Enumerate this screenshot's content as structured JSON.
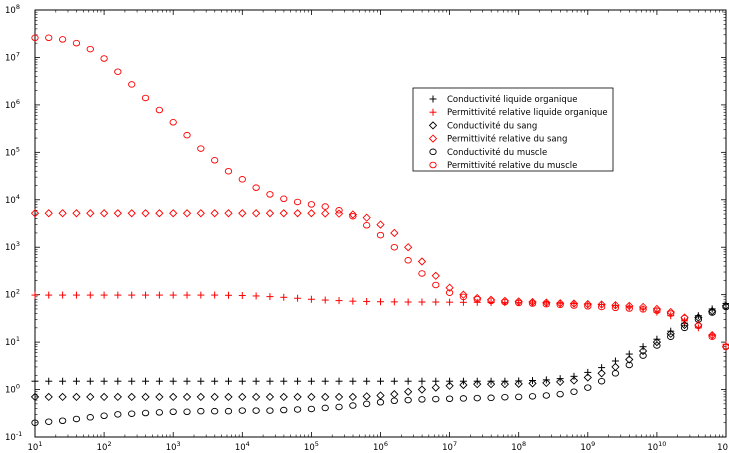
{
  "chart_data": {
    "type": "scatter",
    "title": "",
    "xlabel": "",
    "ylabel": "",
    "x_scale": "log",
    "y_scale": "log",
    "xlim": [
      10,
      100000000000.0
    ],
    "ylim": [
      0.1,
      100000000.0
    ],
    "grid": false,
    "legend_position": "right-center",
    "x_ticks": [
      {
        "base": "10",
        "exp": "1",
        "value": 10
      },
      {
        "base": "10",
        "exp": "2",
        "value": 100
      },
      {
        "base": "10",
        "exp": "3",
        "value": 1000
      },
      {
        "base": "10",
        "exp": "4",
        "value": 10000.0
      },
      {
        "base": "10",
        "exp": "5",
        "value": 100000.0
      },
      {
        "base": "10",
        "exp": "6",
        "value": 1000000.0
      },
      {
        "base": "10",
        "exp": "7",
        "value": 10000000.0
      },
      {
        "base": "10",
        "exp": "8",
        "value": 100000000.0
      },
      {
        "base": "10",
        "exp": "9",
        "value": 1000000000.0
      },
      {
        "base": "10",
        "exp": "10",
        "value": 10000000000.0
      },
      {
        "base": "10",
        "exp": "",
        "value": 100000000000.0
      }
    ],
    "y_ticks": [
      {
        "base": "10",
        "exp": "-1",
        "value": 0.1
      },
      {
        "base": "10",
        "exp": "0",
        "value": 1
      },
      {
        "base": "10",
        "exp": "1",
        "value": 10
      },
      {
        "base": "10",
        "exp": "2",
        "value": 100
      },
      {
        "base": "10",
        "exp": "3",
        "value": 1000
      },
      {
        "base": "10",
        "exp": "4",
        "value": 10000.0
      },
      {
        "base": "10",
        "exp": "5",
        "value": 100000.0
      },
      {
        "base": "10",
        "exp": "6",
        "value": 1000000.0
      },
      {
        "base": "10",
        "exp": "7",
        "value": 10000000.0
      },
      {
        "base": "10",
        "exp": "8",
        "value": 100000000.0
      }
    ],
    "x": [
      10,
      15.8,
      25.1,
      39.8,
      63.1,
      100,
      158,
      251,
      398,
      631,
      1000,
      1585,
      2512,
      3981,
      6310,
      10000,
      15849,
      25119,
      39811,
      63096,
      100000,
      158489,
      251189,
      398107,
      630957,
      1000000,
      1584893,
      2511886,
      3981072,
      6309573,
      10000000,
      15848932,
      25118864,
      39810717,
      63095734,
      100000000,
      158489319,
      251188643,
      398107171,
      630957344,
      1000000000,
      1584893192,
      2511886432,
      3981071706,
      6309573445,
      10000000000,
      15848931925,
      25118864315,
      39810717055,
      63095734448,
      100000000000
    ],
    "series": [
      {
        "name": "Conductivité liquide organique",
        "marker": "plus",
        "color": "#000000",
        "values": [
          1.5,
          1.5,
          1.5,
          1.5,
          1.5,
          1.5,
          1.5,
          1.5,
          1.5,
          1.5,
          1.5,
          1.5,
          1.5,
          1.5,
          1.5,
          1.5,
          1.5,
          1.5,
          1.5,
          1.5,
          1.5,
          1.5,
          1.5,
          1.5,
          1.5,
          1.5,
          1.5,
          1.5,
          1.5,
          1.5,
          1.5,
          1.5,
          1.5,
          1.5,
          1.5,
          1.52,
          1.55,
          1.6,
          1.7,
          1.9,
          2.3,
          2.9,
          4,
          5.6,
          8,
          11.5,
          17,
          25,
          36,
          50,
          65
        ]
      },
      {
        "name": "Permittivité relative liquide organique",
        "marker": "plus",
        "color": "#ff0000",
        "values": [
          98,
          98,
          98,
          98,
          98,
          98,
          98,
          98,
          98,
          98,
          98,
          98,
          98,
          98,
          97,
          96,
          94,
          91,
          88,
          84,
          80,
          77,
          75,
          73,
          72,
          71,
          70.5,
          70,
          70,
          70,
          69.5,
          69,
          69,
          68.5,
          68,
          68,
          67,
          67,
          66,
          65,
          64,
          62,
          59,
          55,
          50,
          43,
          36,
          28,
          20,
          14,
          9
        ]
      },
      {
        "name": "Conductivité du sang",
        "marker": "diamond",
        "color": "#000000",
        "values": [
          0.7,
          0.7,
          0.7,
          0.7,
          0.7,
          0.7,
          0.7,
          0.7,
          0.7,
          0.7,
          0.7,
          0.7,
          0.7,
          0.7,
          0.7,
          0.7,
          0.7,
          0.7,
          0.7,
          0.7,
          0.7,
          0.7,
          0.7,
          0.7,
          0.72,
          0.75,
          0.8,
          0.9,
          1,
          1.1,
          1.2,
          1.25,
          1.3,
          1.3,
          1.3,
          1.32,
          1.35,
          1.38,
          1.45,
          1.55,
          1.8,
          2.2,
          3,
          4.3,
          6.5,
          10,
          15,
          23,
          33,
          45,
          58
        ]
      },
      {
        "name": "Permittivité relative du sang",
        "marker": "diamond",
        "color": "#ff0000",
        "values": [
          5200,
          5200,
          5200,
          5200,
          5200,
          5200,
          5200,
          5200,
          5200,
          5200,
          5200,
          5200,
          5200,
          5200,
          5200,
          5200,
          5200,
          5200,
          5200,
          5200,
          5200,
          5150,
          5100,
          4900,
          4200,
          3000,
          2000,
          1000,
          500,
          250,
          140,
          100,
          85,
          78,
          74,
          72,
          70,
          68,
          66,
          65,
          63,
          62,
          60,
          58,
          55,
          50,
          43,
          33,
          23,
          14,
          8
        ]
      },
      {
        "name": "Conductivité du muscle",
        "marker": "circle",
        "color": "#000000",
        "values": [
          0.2,
          0.21,
          0.22,
          0.24,
          0.26,
          0.28,
          0.3,
          0.31,
          0.32,
          0.33,
          0.34,
          0.34,
          0.35,
          0.35,
          0.35,
          0.36,
          0.36,
          0.36,
          0.37,
          0.38,
          0.39,
          0.41,
          0.43,
          0.46,
          0.5,
          0.54,
          0.58,
          0.6,
          0.62,
          0.63,
          0.64,
          0.65,
          0.66,
          0.67,
          0.69,
          0.7,
          0.72,
          0.75,
          0.8,
          0.9,
          1.1,
          1.5,
          2.2,
          3.3,
          5.2,
          8.5,
          13,
          20,
          30,
          42,
          55
        ]
      },
      {
        "name": "Permittivité relative du muscle",
        "marker": "circle",
        "color": "#ff0000",
        "values": [
          26000000,
          26000000,
          24000000,
          20000000,
          15000000,
          9500000,
          5000000,
          2700000,
          1400000,
          780000,
          430000,
          230000,
          120000,
          68000,
          40000,
          27000,
          18000,
          13000,
          10500,
          9000,
          8000,
          7200,
          6000,
          4500,
          2900,
          1800,
          1000,
          530,
          280,
          160,
          110,
          90,
          80,
          74,
          70,
          67,
          65,
          63,
          61,
          59,
          57,
          55,
          53,
          51,
          49,
          46,
          40,
          32,
          22,
          13,
          8
        ]
      }
    ]
  }
}
